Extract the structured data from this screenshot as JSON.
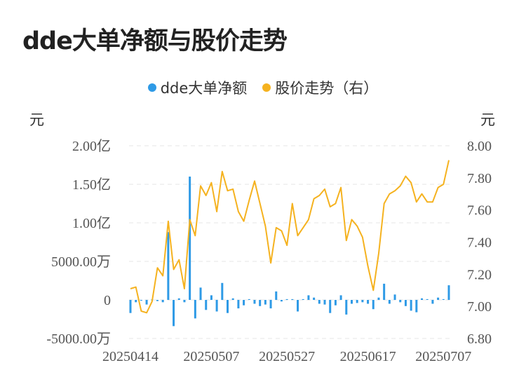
{
  "title": "dde大单净额与股价走势",
  "chart_data": {
    "type": "bar+line",
    "title": "dde大单净额与股价走势",
    "series": [
      {
        "name": "dde大单净额",
        "type": "bar",
        "axis": "left",
        "color": "#2e9ae6",
        "values": [
          -1700,
          -300,
          -100,
          -600,
          50,
          -150,
          -300,
          8800,
          -3400,
          200,
          -300,
          16000,
          -2400,
          1600,
          -1300,
          600,
          -1500,
          2200,
          -1700,
          200,
          -1100,
          -700,
          100,
          -500,
          -800,
          -600,
          -1100,
          1100,
          -200,
          100,
          100,
          -1500,
          100,
          600,
          300,
          -500,
          -600,
          -1700,
          -700,
          600,
          -1900,
          -500,
          -400,
          -300,
          -500,
          -1200,
          300,
          2100,
          -500,
          700,
          -300,
          -800,
          -1400,
          -1600,
          200,
          100,
          -500,
          300,
          100,
          1900
        ]
      },
      {
        "name": "股价走势（右）",
        "type": "line",
        "axis": "right",
        "color": "#f5b21f",
        "values": [
          7.11,
          7.12,
          6.97,
          6.96,
          7.03,
          7.24,
          7.19,
          7.53,
          7.23,
          7.29,
          7.11,
          7.54,
          7.44,
          7.75,
          7.69,
          7.77,
          7.59,
          7.84,
          7.72,
          7.73,
          7.59,
          7.53,
          7.66,
          7.78,
          7.64,
          7.5,
          7.27,
          7.49,
          7.47,
          7.38,
          7.64,
          7.44,
          7.49,
          7.54,
          7.67,
          7.69,
          7.73,
          7.62,
          7.64,
          7.74,
          7.41,
          7.54,
          7.5,
          7.43,
          7.25,
          7.1,
          7.33,
          7.64,
          7.7,
          7.72,
          7.75,
          7.81,
          7.77,
          7.65,
          7.7,
          7.65,
          7.65,
          7.74,
          7.76,
          7.91
        ]
      }
    ],
    "left_axis": {
      "unit": "元",
      "ylim": [
        -5000,
        20000
      ],
      "ticks": [
        {
          "value": -5000,
          "label": "-5000.00万"
        },
        {
          "value": 0,
          "label": "0"
        },
        {
          "value": 5000,
          "label": "5000.00万"
        },
        {
          "value": 10000,
          "label": "1.00亿"
        },
        {
          "value": 15000,
          "label": "1.50亿"
        },
        {
          "value": 20000,
          "label": "2.00亿"
        }
      ]
    },
    "right_axis": {
      "unit": "元",
      "ylim": [
        6.8,
        8.0
      ],
      "ticks": [
        "6.80",
        "7.00",
        "7.20",
        "7.40",
        "7.60",
        "7.80",
        "8.00"
      ]
    },
    "x_labels": [
      {
        "index": 0,
        "label": "20250414"
      },
      {
        "index": 15,
        "label": "20250507"
      },
      {
        "index": 29,
        "label": "20250527"
      },
      {
        "index": 44,
        "label": "20250617"
      },
      {
        "index": 58,
        "label": "20250707"
      }
    ],
    "grid": true,
    "legend_position": "top-center"
  }
}
